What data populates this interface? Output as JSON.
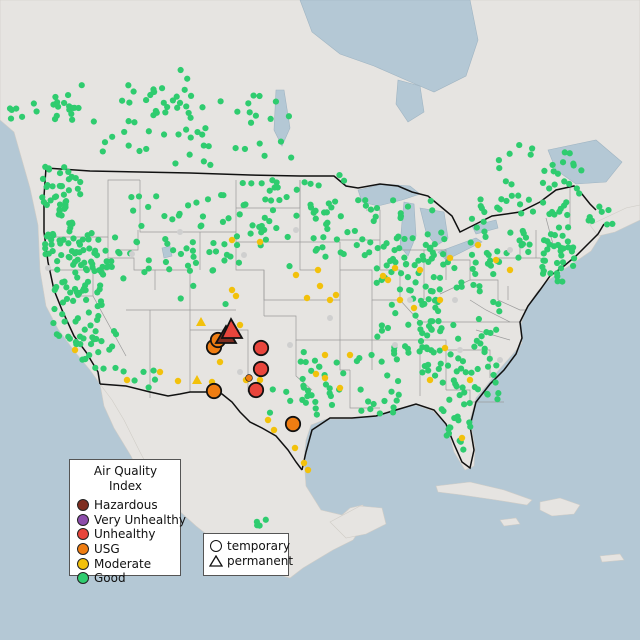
{
  "map": {
    "colors": {
      "water": "#b4c8d5",
      "land": "#e6e4e1",
      "land_dark": "#dcdad6",
      "state_line": "#9a9a9a",
      "country_line": "#111111",
      "no_data": "#cfcfcf"
    },
    "legend": {
      "title": "Air Quality Index",
      "items": [
        {
          "label": "Hazardous",
          "color": "#7e2d20",
          "icon": "circle"
        },
        {
          "label": "Very Unhealthy",
          "color": "#8c4dab",
          "icon": "circle"
        },
        {
          "label": "Unhealthy",
          "color": "#e8453c",
          "icon": "circle"
        },
        {
          "label": "USG",
          "color": "#ef7d12",
          "icon": "circle"
        },
        {
          "label": "Moderate",
          "color": "#f2c10b",
          "icon": "circle"
        },
        {
          "label": "Good",
          "color": "#2fcc6f",
          "icon": "circle"
        }
      ]
    },
    "shape_legend": {
      "items": [
        {
          "label": "temporary",
          "icon": "circle-outline-icon"
        },
        {
          "label": "permanent",
          "icon": "triangle-outline-icon"
        }
      ]
    }
  }
}
